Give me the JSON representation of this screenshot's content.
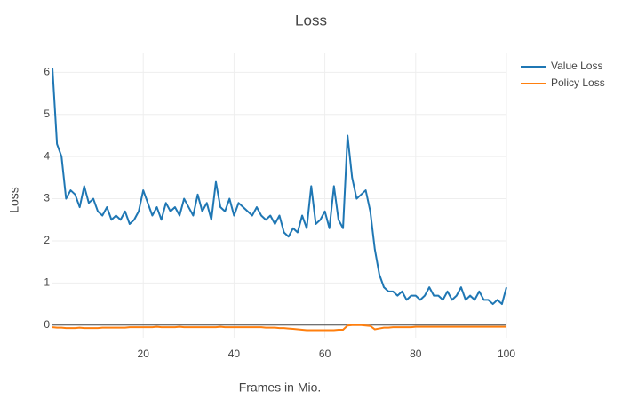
{
  "chart_data": {
    "type": "line",
    "title": "Loss",
    "x_label": "Frames in Mio.",
    "y_label": "Loss",
    "x": [
      0,
      1,
      2,
      3,
      4,
      5,
      6,
      7,
      8,
      9,
      10,
      11,
      12,
      13,
      14,
      15,
      16,
      17,
      18,
      19,
      20,
      21,
      22,
      23,
      24,
      25,
      26,
      27,
      28,
      29,
      30,
      31,
      32,
      33,
      34,
      35,
      36,
      37,
      38,
      39,
      40,
      41,
      42,
      43,
      44,
      45,
      46,
      47,
      48,
      49,
      50,
      51,
      52,
      53,
      54,
      55,
      56,
      57,
      58,
      59,
      60,
      61,
      62,
      63,
      64,
      65,
      66,
      67,
      68,
      69,
      70,
      71,
      72,
      73,
      74,
      75,
      76,
      77,
      78,
      79,
      80,
      81,
      82,
      83,
      84,
      85,
      86,
      87,
      88,
      89,
      90,
      91,
      92,
      93,
      94,
      95,
      96,
      97,
      98,
      99,
      100
    ],
    "series": [
      {
        "name": "Value Loss",
        "color": "#1f77b4",
        "values": [
          6.1,
          4.3,
          4.0,
          3.0,
          3.2,
          3.1,
          2.8,
          3.3,
          2.9,
          3.0,
          2.7,
          2.6,
          2.8,
          2.5,
          2.6,
          2.5,
          2.7,
          2.4,
          2.5,
          2.7,
          3.2,
          2.9,
          2.6,
          2.8,
          2.5,
          2.9,
          2.7,
          2.8,
          2.6,
          3.0,
          2.8,
          2.6,
          3.1,
          2.7,
          2.9,
          2.5,
          3.4,
          2.8,
          2.7,
          3.0,
          2.6,
          2.9,
          2.8,
          2.7,
          2.6,
          2.8,
          2.6,
          2.5,
          2.6,
          2.4,
          2.6,
          2.2,
          2.1,
          2.3,
          2.2,
          2.6,
          2.3,
          3.3,
          2.4,
          2.5,
          2.7,
          2.3,
          3.3,
          2.5,
          2.3,
          4.5,
          3.5,
          3.0,
          3.1,
          3.2,
          2.7,
          1.8,
          1.2,
          0.9,
          0.8,
          0.8,
          0.7,
          0.8,
          0.6,
          0.7,
          0.7,
          0.6,
          0.7,
          0.9,
          0.7,
          0.7,
          0.6,
          0.8,
          0.6,
          0.7,
          0.9,
          0.6,
          0.7,
          0.6,
          0.8,
          0.6,
          0.6,
          0.5,
          0.6,
          0.5,
          0.9
        ]
      },
      {
        "name": "Policy Loss",
        "color": "#ff7f0e",
        "values": [
          -0.05,
          -0.06,
          -0.06,
          -0.07,
          -0.07,
          -0.07,
          -0.06,
          -0.07,
          -0.07,
          -0.07,
          -0.07,
          -0.06,
          -0.06,
          -0.06,
          -0.06,
          -0.06,
          -0.06,
          -0.05,
          -0.05,
          -0.05,
          -0.05,
          -0.05,
          -0.05,
          -0.04,
          -0.05,
          -0.05,
          -0.05,
          -0.05,
          -0.04,
          -0.05,
          -0.05,
          -0.05,
          -0.05,
          -0.05,
          -0.05,
          -0.05,
          -0.05,
          -0.04,
          -0.05,
          -0.05,
          -0.05,
          -0.05,
          -0.05,
          -0.05,
          -0.05,
          -0.05,
          -0.05,
          -0.06,
          -0.06,
          -0.06,
          -0.07,
          -0.07,
          -0.08,
          -0.09,
          -0.1,
          -0.11,
          -0.12,
          -0.12,
          -0.12,
          -0.12,
          -0.12,
          -0.12,
          -0.12,
          -0.11,
          -0.11,
          -0.01,
          0.0,
          0.0,
          0.0,
          -0.01,
          -0.02,
          -0.1,
          -0.08,
          -0.06,
          -0.06,
          -0.05,
          -0.05,
          -0.05,
          -0.05,
          -0.05,
          -0.04,
          -0.04,
          -0.04,
          -0.04,
          -0.04,
          -0.04,
          -0.04,
          -0.04,
          -0.04,
          -0.04,
          -0.04,
          -0.04,
          -0.04,
          -0.04,
          -0.04,
          -0.04,
          -0.04,
          -0.04,
          -0.04,
          -0.04,
          -0.04
        ]
      }
    ],
    "xlim": [
      0,
      100
    ],
    "xticks": [
      20,
      40,
      60,
      80,
      100
    ],
    "ylim": [
      -0.3,
      6.45
    ],
    "yticks": [
      0,
      1,
      2,
      3,
      4,
      5,
      6
    ],
    "grid": true,
    "legend": "top-right-outside"
  }
}
